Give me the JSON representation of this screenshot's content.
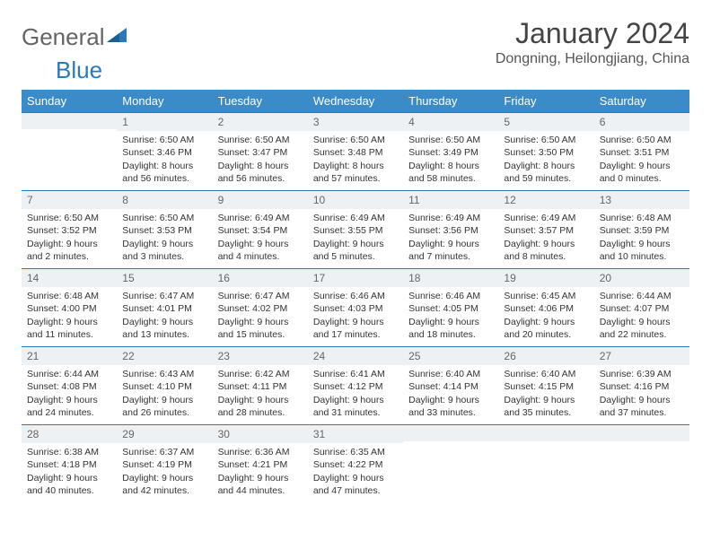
{
  "logo": {
    "text1": "General",
    "text2": "Blue"
  },
  "title": "January 2024",
  "location": "Dongning, Heilongjiang, China",
  "colors": {
    "header_bg": "#3b8bc8",
    "header_text": "#ffffff",
    "row_border": "#2a7ab8",
    "daynum_bg": "#eef1f3",
    "body_text": "#333333",
    "logo_gray": "#646464",
    "logo_blue": "#2a7ab8"
  },
  "weekdays": [
    "Sunday",
    "Monday",
    "Tuesday",
    "Wednesday",
    "Thursday",
    "Friday",
    "Saturday"
  ],
  "weeks": [
    [
      {
        "day": "",
        "sunrise": "",
        "sunset": "",
        "daylight": ""
      },
      {
        "day": "1",
        "sunrise": "Sunrise: 6:50 AM",
        "sunset": "Sunset: 3:46 PM",
        "daylight": "Daylight: 8 hours and 56 minutes."
      },
      {
        "day": "2",
        "sunrise": "Sunrise: 6:50 AM",
        "sunset": "Sunset: 3:47 PM",
        "daylight": "Daylight: 8 hours and 56 minutes."
      },
      {
        "day": "3",
        "sunrise": "Sunrise: 6:50 AM",
        "sunset": "Sunset: 3:48 PM",
        "daylight": "Daylight: 8 hours and 57 minutes."
      },
      {
        "day": "4",
        "sunrise": "Sunrise: 6:50 AM",
        "sunset": "Sunset: 3:49 PM",
        "daylight": "Daylight: 8 hours and 58 minutes."
      },
      {
        "day": "5",
        "sunrise": "Sunrise: 6:50 AM",
        "sunset": "Sunset: 3:50 PM",
        "daylight": "Daylight: 8 hours and 59 minutes."
      },
      {
        "day": "6",
        "sunrise": "Sunrise: 6:50 AM",
        "sunset": "Sunset: 3:51 PM",
        "daylight": "Daylight: 9 hours and 0 minutes."
      }
    ],
    [
      {
        "day": "7",
        "sunrise": "Sunrise: 6:50 AM",
        "sunset": "Sunset: 3:52 PM",
        "daylight": "Daylight: 9 hours and 2 minutes."
      },
      {
        "day": "8",
        "sunrise": "Sunrise: 6:50 AM",
        "sunset": "Sunset: 3:53 PM",
        "daylight": "Daylight: 9 hours and 3 minutes."
      },
      {
        "day": "9",
        "sunrise": "Sunrise: 6:49 AM",
        "sunset": "Sunset: 3:54 PM",
        "daylight": "Daylight: 9 hours and 4 minutes."
      },
      {
        "day": "10",
        "sunrise": "Sunrise: 6:49 AM",
        "sunset": "Sunset: 3:55 PM",
        "daylight": "Daylight: 9 hours and 5 minutes."
      },
      {
        "day": "11",
        "sunrise": "Sunrise: 6:49 AM",
        "sunset": "Sunset: 3:56 PM",
        "daylight": "Daylight: 9 hours and 7 minutes."
      },
      {
        "day": "12",
        "sunrise": "Sunrise: 6:49 AM",
        "sunset": "Sunset: 3:57 PM",
        "daylight": "Daylight: 9 hours and 8 minutes."
      },
      {
        "day": "13",
        "sunrise": "Sunrise: 6:48 AM",
        "sunset": "Sunset: 3:59 PM",
        "daylight": "Daylight: 9 hours and 10 minutes."
      }
    ],
    [
      {
        "day": "14",
        "sunrise": "Sunrise: 6:48 AM",
        "sunset": "Sunset: 4:00 PM",
        "daylight": "Daylight: 9 hours and 11 minutes."
      },
      {
        "day": "15",
        "sunrise": "Sunrise: 6:47 AM",
        "sunset": "Sunset: 4:01 PM",
        "daylight": "Daylight: 9 hours and 13 minutes."
      },
      {
        "day": "16",
        "sunrise": "Sunrise: 6:47 AM",
        "sunset": "Sunset: 4:02 PM",
        "daylight": "Daylight: 9 hours and 15 minutes."
      },
      {
        "day": "17",
        "sunrise": "Sunrise: 6:46 AM",
        "sunset": "Sunset: 4:03 PM",
        "daylight": "Daylight: 9 hours and 17 minutes."
      },
      {
        "day": "18",
        "sunrise": "Sunrise: 6:46 AM",
        "sunset": "Sunset: 4:05 PM",
        "daylight": "Daylight: 9 hours and 18 minutes."
      },
      {
        "day": "19",
        "sunrise": "Sunrise: 6:45 AM",
        "sunset": "Sunset: 4:06 PM",
        "daylight": "Daylight: 9 hours and 20 minutes."
      },
      {
        "day": "20",
        "sunrise": "Sunrise: 6:44 AM",
        "sunset": "Sunset: 4:07 PM",
        "daylight": "Daylight: 9 hours and 22 minutes."
      }
    ],
    [
      {
        "day": "21",
        "sunrise": "Sunrise: 6:44 AM",
        "sunset": "Sunset: 4:08 PM",
        "daylight": "Daylight: 9 hours and 24 minutes."
      },
      {
        "day": "22",
        "sunrise": "Sunrise: 6:43 AM",
        "sunset": "Sunset: 4:10 PM",
        "daylight": "Daylight: 9 hours and 26 minutes."
      },
      {
        "day": "23",
        "sunrise": "Sunrise: 6:42 AM",
        "sunset": "Sunset: 4:11 PM",
        "daylight": "Daylight: 9 hours and 28 minutes."
      },
      {
        "day": "24",
        "sunrise": "Sunrise: 6:41 AM",
        "sunset": "Sunset: 4:12 PM",
        "daylight": "Daylight: 9 hours and 31 minutes."
      },
      {
        "day": "25",
        "sunrise": "Sunrise: 6:40 AM",
        "sunset": "Sunset: 4:14 PM",
        "daylight": "Daylight: 9 hours and 33 minutes."
      },
      {
        "day": "26",
        "sunrise": "Sunrise: 6:40 AM",
        "sunset": "Sunset: 4:15 PM",
        "daylight": "Daylight: 9 hours and 35 minutes."
      },
      {
        "day": "27",
        "sunrise": "Sunrise: 6:39 AM",
        "sunset": "Sunset: 4:16 PM",
        "daylight": "Daylight: 9 hours and 37 minutes."
      }
    ],
    [
      {
        "day": "28",
        "sunrise": "Sunrise: 6:38 AM",
        "sunset": "Sunset: 4:18 PM",
        "daylight": "Daylight: 9 hours and 40 minutes."
      },
      {
        "day": "29",
        "sunrise": "Sunrise: 6:37 AM",
        "sunset": "Sunset: 4:19 PM",
        "daylight": "Daylight: 9 hours and 42 minutes."
      },
      {
        "day": "30",
        "sunrise": "Sunrise: 6:36 AM",
        "sunset": "Sunset: 4:21 PM",
        "daylight": "Daylight: 9 hours and 44 minutes."
      },
      {
        "day": "31",
        "sunrise": "Sunrise: 6:35 AM",
        "sunset": "Sunset: 4:22 PM",
        "daylight": "Daylight: 9 hours and 47 minutes."
      },
      {
        "day": "",
        "sunrise": "",
        "sunset": "",
        "daylight": ""
      },
      {
        "day": "",
        "sunrise": "",
        "sunset": "",
        "daylight": ""
      },
      {
        "day": "",
        "sunrise": "",
        "sunset": "",
        "daylight": ""
      }
    ]
  ]
}
